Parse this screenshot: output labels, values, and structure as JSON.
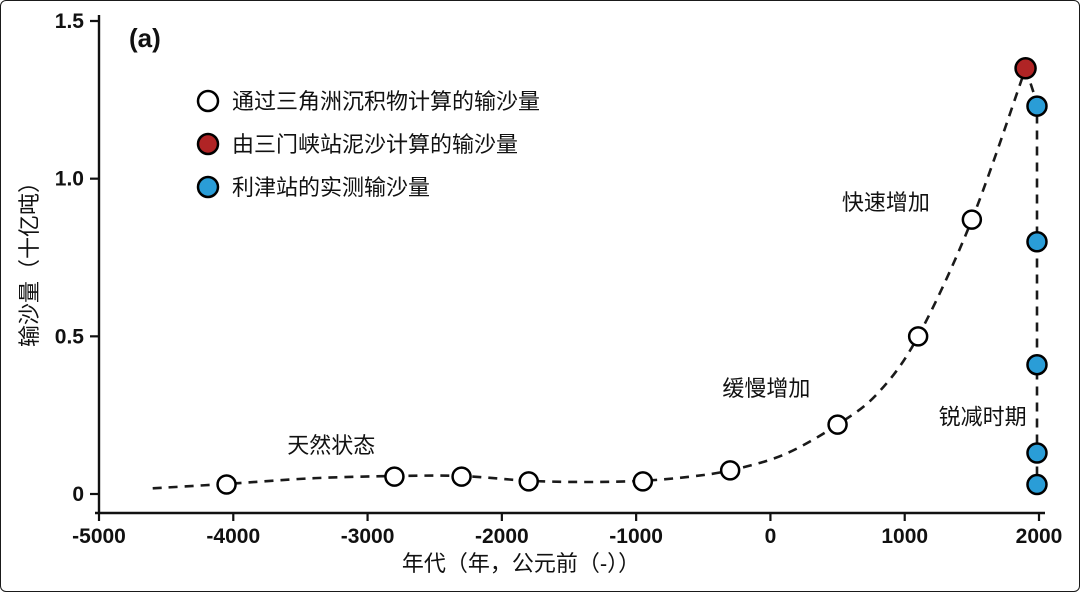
{
  "panel_label": "(a)",
  "chart_data": {
    "type": "scatter",
    "title": "",
    "xlabel": "年代（年，公元前（-））",
    "ylabel": "输沙量（十亿吨）",
    "xlim": [
      -5000,
      2000
    ],
    "ylim": [
      0,
      1.5
    ],
    "grid": false,
    "legend_position": "top-left",
    "xticks": [
      -5000,
      -4000,
      -3000,
      -2000,
      -1000,
      0,
      1000,
      2000
    ],
    "xtick_labels": [
      "-5000",
      "-4000",
      "-3000",
      "-2000",
      "-1000",
      "0",
      "1000",
      "2000"
    ],
    "yticks": [
      0,
      0.5,
      1.0,
      1.5
    ],
    "ytick_labels": [
      "0",
      "0.5",
      "1.0",
      "1.5"
    ],
    "line_color": "#1a1a1a",
    "series": [
      {
        "name": "通过三角洲沉积物计算的输沙量",
        "marker": "circle",
        "fill": "#ffffff",
        "stroke": "#000000",
        "points": [
          [
            -4050,
            0.03
          ],
          [
            -2800,
            0.055
          ],
          [
            -2300,
            0.055
          ],
          [
            -1800,
            0.04
          ],
          [
            -950,
            0.04
          ],
          [
            -300,
            0.075
          ],
          [
            500,
            0.22
          ],
          [
            1100,
            0.5
          ],
          [
            1500,
            0.87
          ]
        ]
      },
      {
        "name": "由三门峡站泥沙计算的输沙量",
        "marker": "circle",
        "fill": "#b02425",
        "stroke": "#000000",
        "points": [
          [
            1900,
            1.35
          ]
        ]
      },
      {
        "name": "利津站的实测输沙量",
        "marker": "circle",
        "fill": "#2a9dd7",
        "stroke": "#000000",
        "points": [
          [
            1985,
            1.23
          ],
          [
            1985,
            0.8
          ],
          [
            1985,
            0.41
          ],
          [
            1985,
            0.13
          ],
          [
            1985,
            0.03
          ]
        ]
      }
    ],
    "trend_curve": [
      [
        -4600,
        0.018
      ],
      [
        -4050,
        0.032
      ],
      [
        -3400,
        0.05
      ],
      [
        -2800,
        0.057
      ],
      [
        -2300,
        0.057
      ],
      [
        -1800,
        0.042
      ],
      [
        -1350,
        0.038
      ],
      [
        -950,
        0.042
      ],
      [
        -600,
        0.055
      ],
      [
        -300,
        0.075
      ],
      [
        100,
        0.125
      ],
      [
        500,
        0.22
      ],
      [
        800,
        0.32
      ],
      [
        1100,
        0.5
      ],
      [
        1500,
        0.87
      ],
      [
        1900,
        1.35
      ]
    ],
    "decline_segment": [
      [
        1900,
        1.35
      ],
      [
        1985,
        1.24
      ],
      [
        1985,
        0.02
      ]
    ],
    "annotations": [
      {
        "text": "天然状态",
        "x": -3270,
        "y": 0.13
      },
      {
        "text": "缓慢增加",
        "x": -30,
        "y": 0.31
      },
      {
        "text": "快速增加",
        "x": 860,
        "y": 0.9
      },
      {
        "text": "锐减时期",
        "x": 1580,
        "y": 0.22
      }
    ]
  }
}
